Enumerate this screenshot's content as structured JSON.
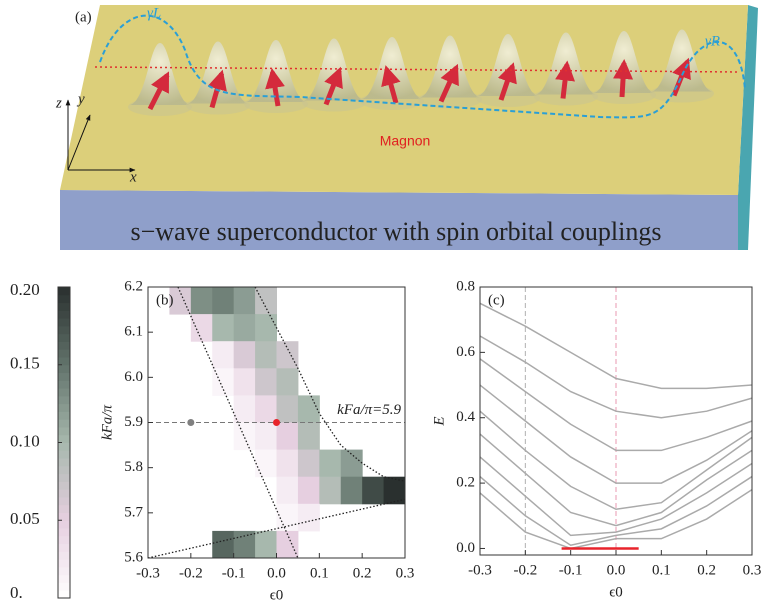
{
  "figure_a": {
    "label": "(a)",
    "gamma_left": "γL",
    "gamma_right": "γR",
    "axis_z": "z",
    "axis_y": "y",
    "axis_x": "x",
    "magnon": "Magnon",
    "substrate": "s−wave superconductor with spin orbital couplings"
  },
  "chart_data": [
    {
      "type": "heatmap",
      "label": "(b)",
      "xlabel": "ϵ0",
      "ylabel": "kFa/π",
      "xlim": [
        -0.3,
        0.3
      ],
      "ylim": [
        5.6,
        6.2
      ],
      "xticks": [
        -0.3,
        -0.2,
        -0.1,
        {
          "value": 0,
          "label": "0.0"
        },
        0.1,
        0.2,
        0.3
      ],
      "yticks": [
        5.6,
        5.7,
        5.8,
        5.9,
        {
          "value": 6,
          "label": "6.0"
        },
        6.1,
        6.2
      ],
      "x": [
        -0.275,
        -0.225,
        -0.175,
        -0.125,
        -0.075,
        -0.025,
        0.025,
        0.075,
        0.125,
        0.175,
        0.225,
        0.275
      ],
      "y": [
        6.17,
        6.11,
        6.05,
        5.99,
        5.93,
        5.87,
        5.81,
        5.75,
        5.69,
        5.63
      ],
      "z": [
        [
          null,
          0.06,
          0.13,
          0.14,
          0.12,
          0.08,
          null,
          null,
          null,
          null,
          null,
          null
        ],
        [
          null,
          null,
          0.04,
          0.1,
          0.11,
          0.1,
          null,
          null,
          null,
          null,
          null,
          null
        ],
        [
          null,
          null,
          null,
          0.02,
          0.06,
          0.09,
          0.07,
          null,
          null,
          null,
          null,
          null
        ],
        [
          null,
          null,
          null,
          0.01,
          0.03,
          0.07,
          0.09,
          null,
          null,
          null,
          null,
          null
        ],
        [
          null,
          null,
          null,
          null,
          0.02,
          0.04,
          0.08,
          0.1,
          null,
          null,
          null,
          null
        ],
        [
          null,
          null,
          null,
          null,
          0.01,
          0.02,
          0.05,
          0.09,
          null,
          null,
          null,
          null
        ],
        [
          null,
          null,
          null,
          null,
          null,
          0.01,
          0.03,
          0.07,
          0.1,
          0.12,
          null,
          null
        ],
        [
          null,
          null,
          null,
          null,
          null,
          null,
          0.02,
          0.05,
          0.09,
          0.14,
          0.18,
          0.2
        ],
        [
          null,
          null,
          null,
          null,
          null,
          null,
          0.01,
          0.02,
          null,
          null,
          null,
          null
        ],
        [
          null,
          null,
          null,
          0.16,
          0.14,
          0.1,
          0.05,
          null,
          null,
          null,
          null,
          null
        ]
      ],
      "colorbar_lim": [
        0,
        0.2
      ],
      "colorbar_ticks": [
        {
          "value": 0,
          "label": "0."
        },
        0.05,
        {
          "value": 0.1,
          "label": "0.10"
        },
        0.15,
        {
          "value": 0.2,
          "label": "0.20"
        }
      ],
      "colormap": [
        "#ffffff",
        "#e6cfe0",
        "#a7b8ad",
        "#62736b",
        "#2a302f"
      ],
      "boundaries": [
        {
          "x": [
            -0.23,
            0.05
          ],
          "y": [
            6.2,
            5.6
          ]
        },
        {
          "x": [
            -0.05,
            0.0,
            0.05,
            0.1,
            0.15,
            0.2,
            0.25,
            0.3
          ],
          "y": [
            6.2,
            6.11,
            6.02,
            5.92,
            5.85,
            5.81,
            5.78,
            5.77
          ]
        },
        {
          "x": [
            -0.3,
            0.3
          ],
          "y": [
            5.6,
            5.73
          ]
        }
      ],
      "hline": 5.9,
      "annotation": "kFa/π=5.9",
      "points": [
        {
          "x": -0.2,
          "y": 5.9,
          "color": "#808080"
        },
        {
          "x": 0,
          "y": 5.9,
          "color": "#e8232b"
        }
      ]
    },
    {
      "type": "line",
      "label": "(c)",
      "xlabel": "ϵ0",
      "ylabel": "E",
      "xlim": [
        -0.3,
        0.3
      ],
      "ylim": [
        -0.02,
        0.8
      ],
      "xticks": [
        -0.3,
        -0.2,
        -0.1,
        {
          "value": 0,
          "label": "0.0"
        },
        0.1,
        0.2,
        0.3
      ],
      "yticks": [
        {
          "value": 0,
          "label": "0.0"
        },
        0.2,
        0.4,
        0.6,
        0.8
      ],
      "vlines": [
        {
          "x": -0.2,
          "color": "#b0b0b0"
        },
        {
          "x": 0,
          "color": "#e89ab0"
        }
      ],
      "x": [
        -0.3,
        -0.2,
        -0.1,
        0,
        0.1,
        0.2,
        0.3
      ],
      "series": [
        {
          "color": "#aaaaaa",
          "values": [
            0.75,
            0.68,
            0.6,
            0.52,
            0.49,
            0.49,
            0.5
          ]
        },
        {
          "color": "#aaaaaa",
          "values": [
            0.65,
            0.57,
            0.48,
            0.42,
            0.4,
            0.42,
            0.46
          ]
        },
        {
          "color": "#aaaaaa",
          "values": [
            0.58,
            0.48,
            0.38,
            0.3,
            0.3,
            0.34,
            0.39
          ]
        },
        {
          "color": "#aaaaaa",
          "values": [
            0.5,
            0.39,
            0.28,
            0.2,
            0.2,
            0.27,
            0.36
          ]
        },
        {
          "color": "#aaaaaa",
          "values": [
            0.42,
            0.3,
            0.19,
            0.12,
            0.14,
            0.24,
            0.34
          ]
        },
        {
          "color": "#aaaaaa",
          "values": [
            0.35,
            0.23,
            0.11,
            0.07,
            0.11,
            0.21,
            0.3
          ]
        },
        {
          "color": "#aaaaaa",
          "values": [
            0.28,
            0.16,
            0.04,
            0.05,
            0.09,
            0.17,
            0.26
          ]
        },
        {
          "color": "#aaaaaa",
          "values": [
            0.22,
            0.1,
            0.01,
            0.04,
            0.06,
            0.13,
            0.22
          ]
        },
        {
          "color": "#aaaaaa",
          "values": [
            0.17,
            0.05,
            0.0,
            0.03,
            0.03,
            0.09,
            0.18
          ]
        },
        {
          "color": "#e8232b",
          "x": [
            -0.12,
            0.05
          ],
          "values": [
            0,
            0
          ]
        }
      ]
    }
  ]
}
